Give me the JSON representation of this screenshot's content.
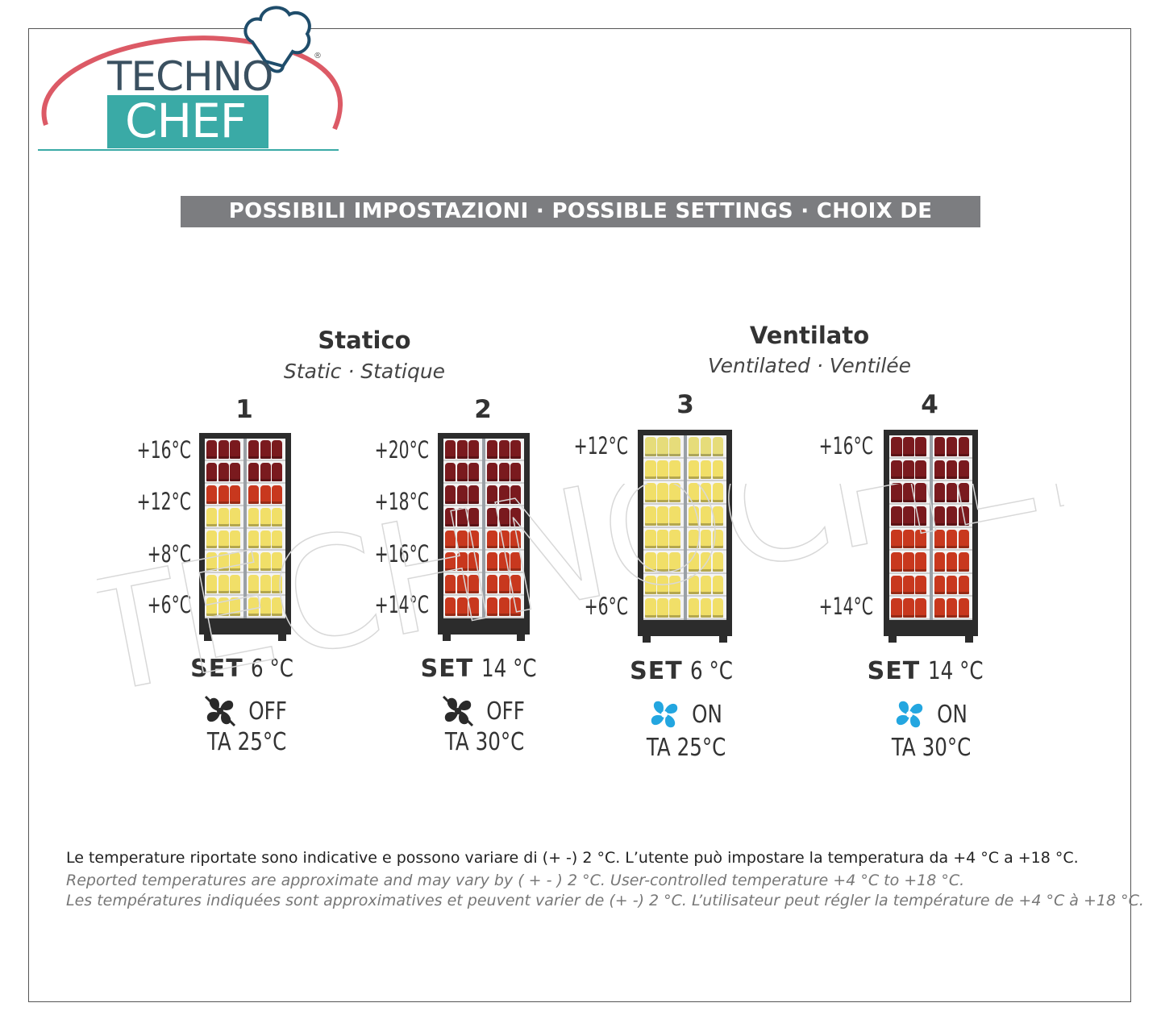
{
  "logo": {
    "line1": "TECHNO",
    "line2": "CHEF",
    "reg": "®"
  },
  "banner": "POSSIBILI IMPOSTAZIONI · POSSIBLE SETTINGS · CHOIX DE RÉGLAGE",
  "groups": [
    {
      "title": "Statico",
      "subtitle": "Static · Statique"
    },
    {
      "title": "Ventilato",
      "subtitle": "Ventilated · Ventilée"
    }
  ],
  "columns": [
    {
      "number": "1",
      "temps": [
        "+16°C",
        "+12°C",
        "+8°C",
        "+6°C"
      ],
      "set_label": "SET",
      "set_value": "6 °C",
      "fan_state": "OFF",
      "fan_icon": "fan-off-icon",
      "ambient": "TA 25°C",
      "shelves": [
        "darkred",
        "darkred",
        "red",
        "yellow",
        "yellow",
        "yellow",
        "yellow",
        "yellow"
      ]
    },
    {
      "number": "2",
      "temps": [
        "+20°C",
        "+18°C",
        "+16°C",
        "+14°C"
      ],
      "set_label": "SET",
      "set_value": "14 °C",
      "fan_state": "OFF",
      "fan_icon": "fan-off-icon",
      "ambient": "TA 30°C",
      "shelves": [
        "darkred",
        "darkred",
        "darkred",
        "darkred",
        "red",
        "red",
        "red",
        "red"
      ]
    },
    {
      "number": "3",
      "temps": [
        "+12°C",
        "+6°C"
      ],
      "set_label": "SET",
      "set_value": "6 °C",
      "fan_state": "ON",
      "fan_icon": "fan-on-icon",
      "ambient": "TA 25°C",
      "shelves": [
        "lightyellow",
        "yellow",
        "yellow",
        "yellow",
        "yellow",
        "yellow",
        "yellow",
        "yellow"
      ]
    },
    {
      "number": "4",
      "temps": [
        "+16°C",
        "+14°C"
      ],
      "set_label": "SET",
      "set_value": "14 °C",
      "fan_state": "ON",
      "fan_icon": "fan-on-icon",
      "ambient": "TA 30°C",
      "shelves": [
        "darkred",
        "darkred",
        "darkred",
        "darkred",
        "red",
        "red",
        "red",
        "red"
      ]
    }
  ],
  "colors": {
    "darkred": "#7a1a1e",
    "red": "#c8381e",
    "yellow": "#f1df68",
    "lightyellow": "#e6dc7a",
    "fan_on": "#23a6e0",
    "fan_off": "#2a2a2a",
    "banner": "#7c7d80",
    "teal": "#3aaaa6"
  },
  "notes": {
    "it": "Le temperature riportate sono indicative e possono variare di (+  -) 2 °C. L’utente può impostare la temperatura da +4 °C a +18 °C.",
    "en": "Reported temperatures are approximate and may vary by ( + - ) 2 °C. User-controlled temperature +4 °C to +18 °C.",
    "fr": "Les températures indiquées sont approximatives et peuvent varier de (+ -)  2 °C. L’utilisateur peut régler la température de +4 °C à +18 °C."
  },
  "watermark": "TECHNOCHEF.IT"
}
